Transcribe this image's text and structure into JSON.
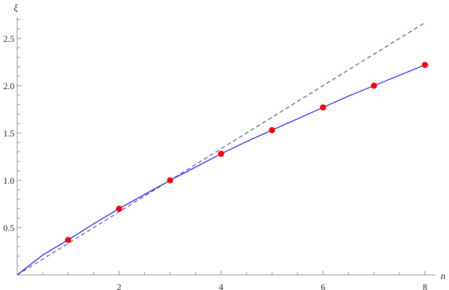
{
  "chart_data": {
    "type": "line",
    "title": "",
    "xlabel": "n",
    "ylabel": "ξ",
    "xlim": [
      0,
      8.2
    ],
    "ylim": [
      0,
      2.7
    ],
    "x_ticks": [
      2,
      4,
      6,
      8
    ],
    "x_tick_labels": [
      "2",
      "4",
      "6",
      "8"
    ],
    "y_ticks": [
      0.5,
      1.0,
      1.5,
      2.0,
      2.5
    ],
    "y_tick_labels": [
      "0.5",
      "1.0",
      "1.5",
      "2.0",
      "2.5"
    ],
    "x_minor_step": 0.5,
    "y_minor_step": 0.1,
    "grid": false,
    "series": [
      {
        "kind": "scatter",
        "color": "#ff0000",
        "x": [
          1,
          2,
          3,
          4,
          5,
          6,
          7,
          8
        ],
        "y": [
          0.37,
          0.7,
          1.0,
          1.28,
          1.53,
          1.77,
          2.0,
          2.22
        ]
      },
      {
        "kind": "line",
        "style": "solid",
        "color": "#0000ff",
        "x": [
          0,
          0.5,
          1,
          1.5,
          2,
          2.5,
          3,
          3.5,
          4,
          4.5,
          5,
          5.5,
          6,
          6.5,
          7,
          7.5,
          8
        ],
        "y": [
          0,
          0.21,
          0.37,
          0.54,
          0.7,
          0.85,
          1.0,
          1.14,
          1.28,
          1.41,
          1.53,
          1.65,
          1.77,
          1.89,
          2.0,
          2.11,
          2.22
        ]
      },
      {
        "kind": "line",
        "style": "dashed",
        "color": "#4444aa",
        "x": [
          0,
          8
        ],
        "y": [
          0,
          2.667
        ]
      }
    ]
  }
}
